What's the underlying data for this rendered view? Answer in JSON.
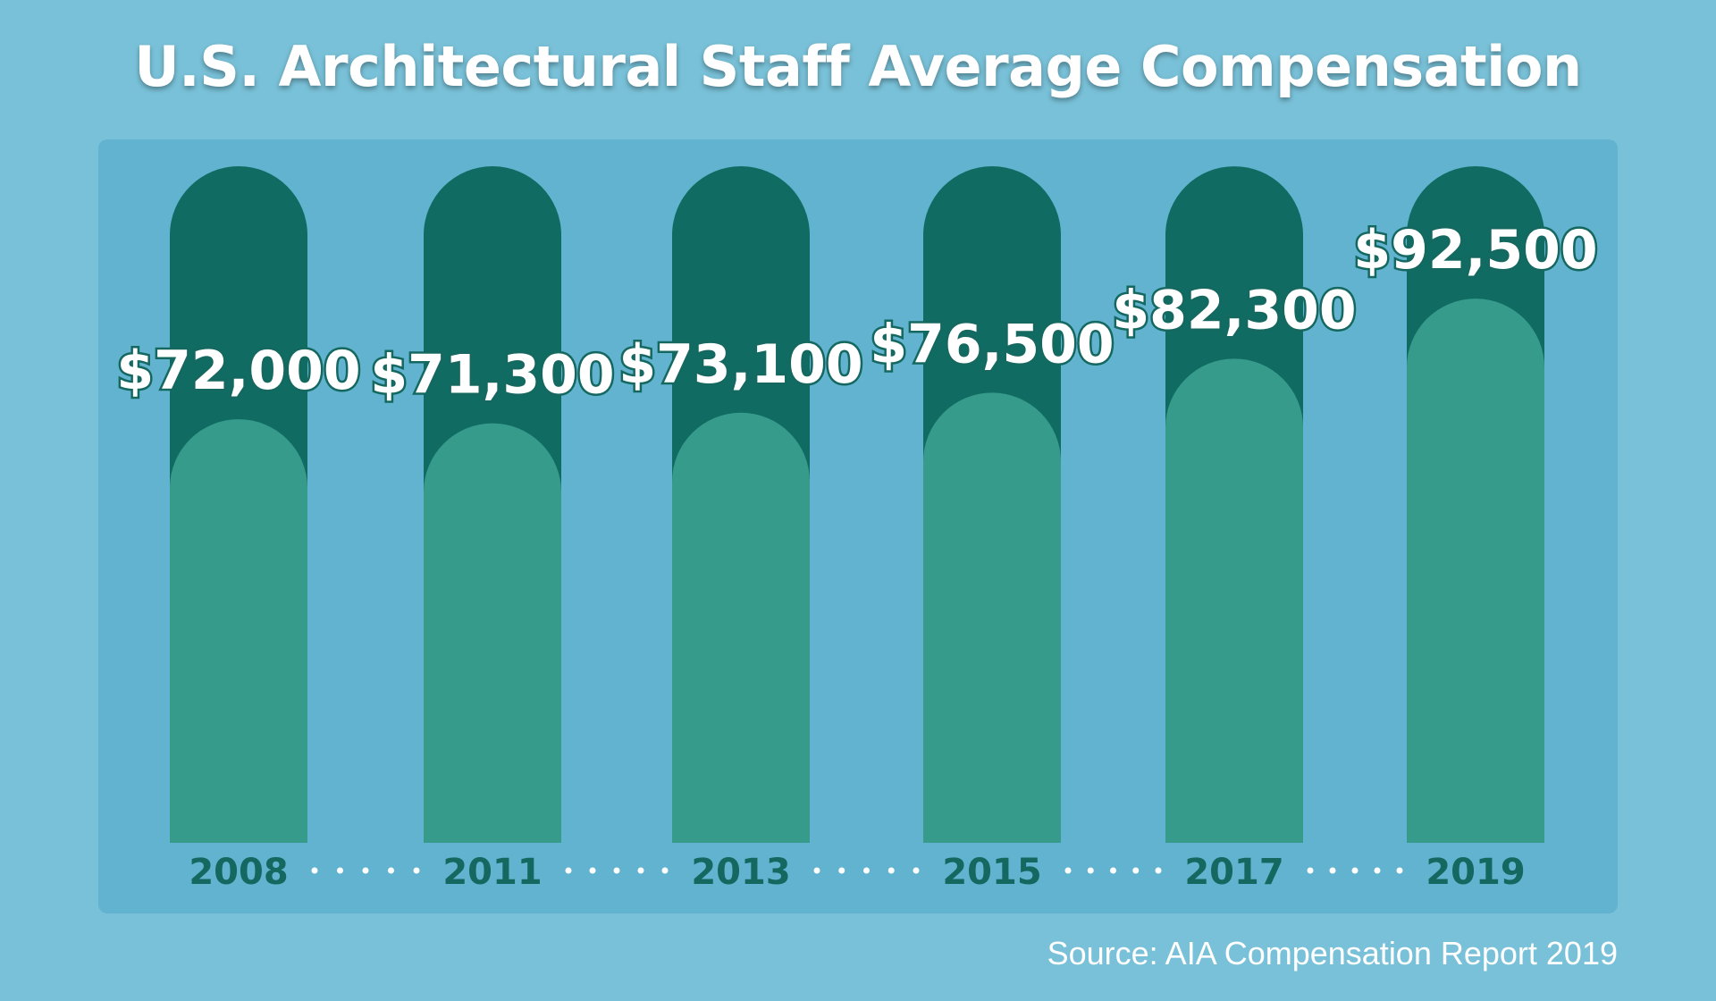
{
  "chart_data": {
    "type": "bar",
    "title": "U.S. Architectural Staff Average Compensation",
    "categories": [
      "2008",
      "2011",
      "2013",
      "2015",
      "2017",
      "2019"
    ],
    "values": [
      72000,
      71300,
      73100,
      76500,
      82300,
      92500
    ],
    "value_labels": [
      "$72,000",
      "$71,300",
      "$73,100",
      "$76,500",
      "$82,300",
      "$92,500"
    ],
    "xlabel": "",
    "ylabel": "",
    "ylim": [
      0,
      115000
    ],
    "grid": false,
    "legend": "none",
    "source": "Source: AIA Compensation Report 2019",
    "colors": {
      "background": "#79c1d8",
      "panel": "#62b3cf",
      "bar_track": "#106c62",
      "bar_fill": "#369b8b",
      "year_label": "#14685f",
      "value_label": "#ffffff",
      "value_outline": "#14685f",
      "dots": "#ffffff"
    }
  }
}
